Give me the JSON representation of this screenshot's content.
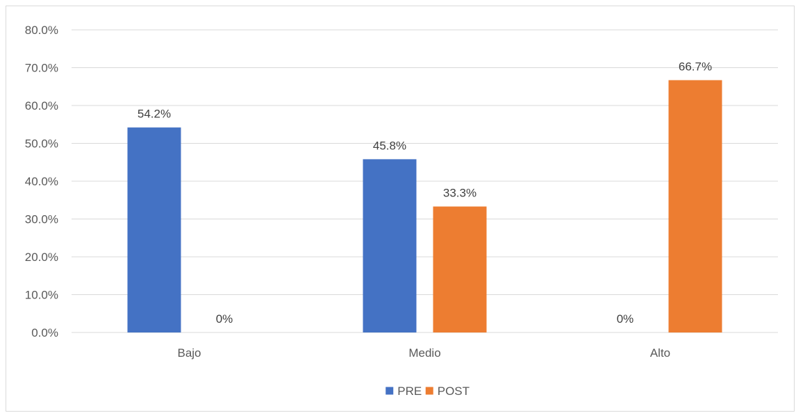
{
  "chart_data": {
    "type": "bar",
    "categories": [
      "Bajo",
      "Medio",
      "Alto"
    ],
    "series": [
      {
        "name": "PRE",
        "values": [
          54.2,
          45.8,
          0
        ],
        "labels": [
          "54.2%",
          "45.8%",
          "0%"
        ],
        "color": "#4472c4"
      },
      {
        "name": "POST",
        "values": [
          0,
          33.3,
          66.7
        ],
        "labels": [
          "0%",
          "33.3%",
          "66.7%"
        ],
        "color": "#ed7d31"
      }
    ],
    "ylim": [
      0,
      80
    ],
    "yticks": [
      0,
      10,
      20,
      30,
      40,
      50,
      60,
      70,
      80
    ],
    "ytick_labels": [
      "0.0%",
      "10.0%",
      "20.0%",
      "30.0%",
      "40.0%",
      "50.0%",
      "60.0%",
      "70.0%",
      "80.0%"
    ],
    "grid": true,
    "gridline_color": "#d9d9d9",
    "legend_position": "bottom"
  }
}
